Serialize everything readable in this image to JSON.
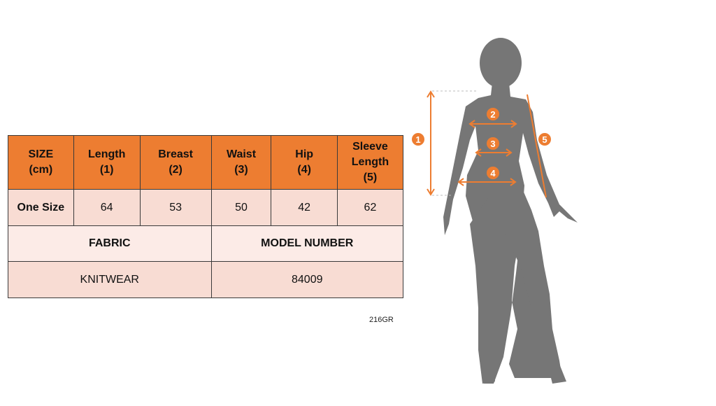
{
  "size_table": {
    "headers": [
      "SIZE\n(cm)",
      "Length\n(1)",
      "Breast\n(2)",
      "Waist\n(3)",
      "Hip\n(4)",
      "Sleeve\nLength\n(5)"
    ],
    "rows": [
      {
        "size": "One Size",
        "values": [
          "64",
          "53",
          "50",
          "42",
          "62"
        ]
      }
    ],
    "fabric_label": "FABRIC",
    "model_number_label": "MODEL NUMBER",
    "fabric_value": "KNITWEAR",
    "model_number_value": "84009"
  },
  "product_code": "216GR",
  "figure": {
    "markers": [
      "1",
      "2",
      "3",
      "4",
      "5"
    ],
    "silhouette_color": "#767676",
    "accent_color": "#ED7D31"
  }
}
